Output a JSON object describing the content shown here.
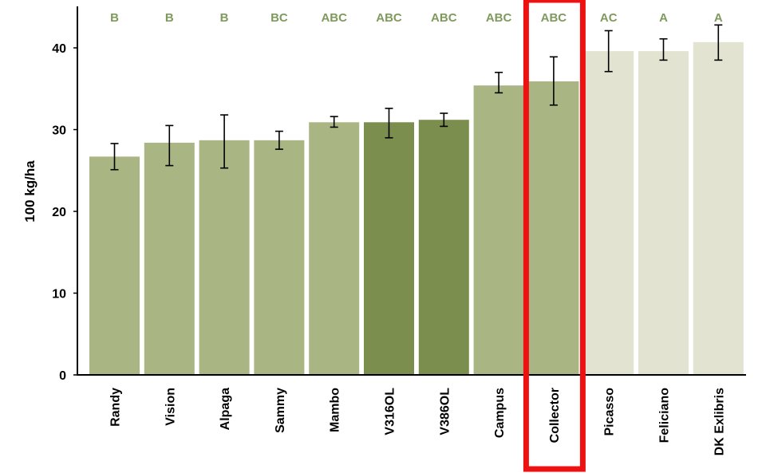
{
  "chart_data": {
    "type": "bar",
    "title": "",
    "xlabel": "",
    "ylabel": "100 kg/ha",
    "ylim": [
      0,
      44
    ],
    "yticks": [
      0,
      10,
      20,
      30,
      40
    ],
    "grid": false,
    "categories": [
      "Randy",
      "Vision",
      "Alpaga",
      "Sammy",
      "Mambo",
      "V316OL",
      "V386OL",
      "Campus",
      "Collector",
      "Picasso",
      "Feliciano",
      "DK Exlibris"
    ],
    "values": [
      26.7,
      28.4,
      28.7,
      28.7,
      30.9,
      30.9,
      31.2,
      35.4,
      35.9,
      39.6,
      39.6,
      40.7
    ],
    "error_low": [
      25.1,
      25.6,
      25.3,
      27.6,
      30.3,
      29.0,
      30.4,
      34.5,
      33.0,
      37.1,
      38.5,
      38.5
    ],
    "error_high": [
      28.3,
      30.5,
      31.8,
      29.8,
      31.6,
      32.6,
      32.0,
      37.0,
      38.9,
      42.1,
      41.1,
      42.8
    ],
    "significance_letters": [
      "B",
      "B",
      "B",
      "BC",
      "ABC",
      "ABC",
      "ABC",
      "ABC",
      "ABC",
      "AC",
      "A",
      "A"
    ],
    "bar_colors": [
      "#aab584",
      "#aab584",
      "#aab584",
      "#aab584",
      "#aab584",
      "#7b8e4d",
      "#7b8e4d",
      "#aab584",
      "#aab584",
      "#e2e3d0",
      "#e2e3d0",
      "#e2e3d0"
    ],
    "letter_color": "#7f9a5c",
    "highlight": {
      "category": "Collector",
      "color": "#ee1111"
    }
  }
}
